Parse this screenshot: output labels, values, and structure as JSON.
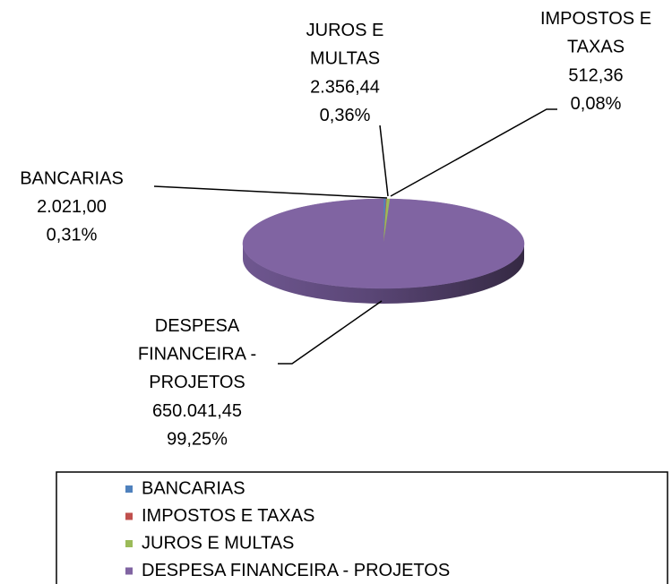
{
  "chart_data": {
    "type": "pie",
    "categories": [
      "BANCARIAS",
      "IMPOSTOS E TAXAS",
      "JUROS E MULTAS",
      "DESPESA FINANCEIRA - PROJETOS"
    ],
    "values": [
      2021.0,
      512.36,
      2356.44,
      650041.45
    ],
    "value_labels": [
      "2.021,00",
      "512,36",
      "2.356,44",
      "650.041,45"
    ],
    "percents": [
      0.31,
      0.08,
      0.36,
      99.25
    ],
    "percent_labels": [
      "0,31%",
      "0,08%",
      "0,36%",
      "99,25%"
    ],
    "colors": [
      "#4f81bd",
      "#c0504d",
      "#9bbb59",
      "#8064a2"
    ],
    "legend": "bottom"
  }
}
